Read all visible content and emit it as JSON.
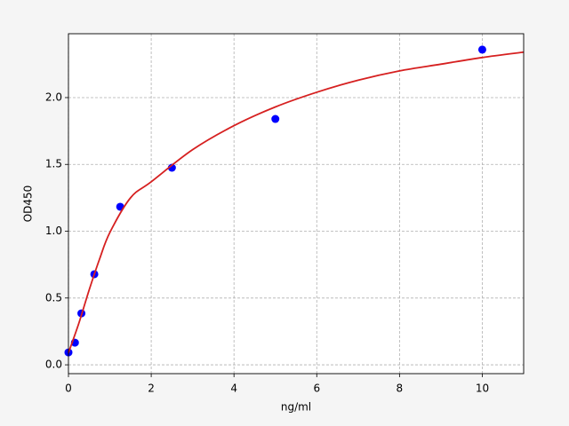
{
  "chart_data": {
    "type": "scatter",
    "xlabel": "ng/ml",
    "ylabel": "OD450",
    "xlim": [
      0,
      11
    ],
    "ylim": [
      -0.066,
      2.478
    ],
    "xticks": [
      0,
      2,
      4,
      6,
      8,
      10
    ],
    "yticks": [
      {
        "value": 0,
        "label": "0.0"
      },
      0.5,
      {
        "value": 1,
        "label": "1.0"
      },
      1.5,
      {
        "value": 2,
        "label": "2.0"
      }
    ],
    "grid": true,
    "series": [
      {
        "color": "#0000ff",
        "mode": "markers",
        "x": [
          0,
          0.156,
          0.3125,
          0.625,
          1.25,
          2.5,
          5,
          10
        ],
        "values": [
          0.093,
          0.166,
          0.385,
          0.678,
          1.183,
          1.475,
          1.84,
          2.359
        ]
      },
      {
        "color": "#d62020",
        "mode": "line",
        "x": [
          0,
          0.25,
          0.5,
          0.75,
          1,
          1.5,
          2,
          3,
          4,
          5,
          6,
          7,
          8,
          9,
          10,
          11
        ],
        "values": [
          0.09,
          0.31,
          0.56,
          0.79,
          0.99,
          1.25,
          1.37,
          1.61,
          1.79,
          1.93,
          2.04,
          2.13,
          2.2,
          2.25,
          2.3,
          2.34
        ]
      }
    ]
  }
}
